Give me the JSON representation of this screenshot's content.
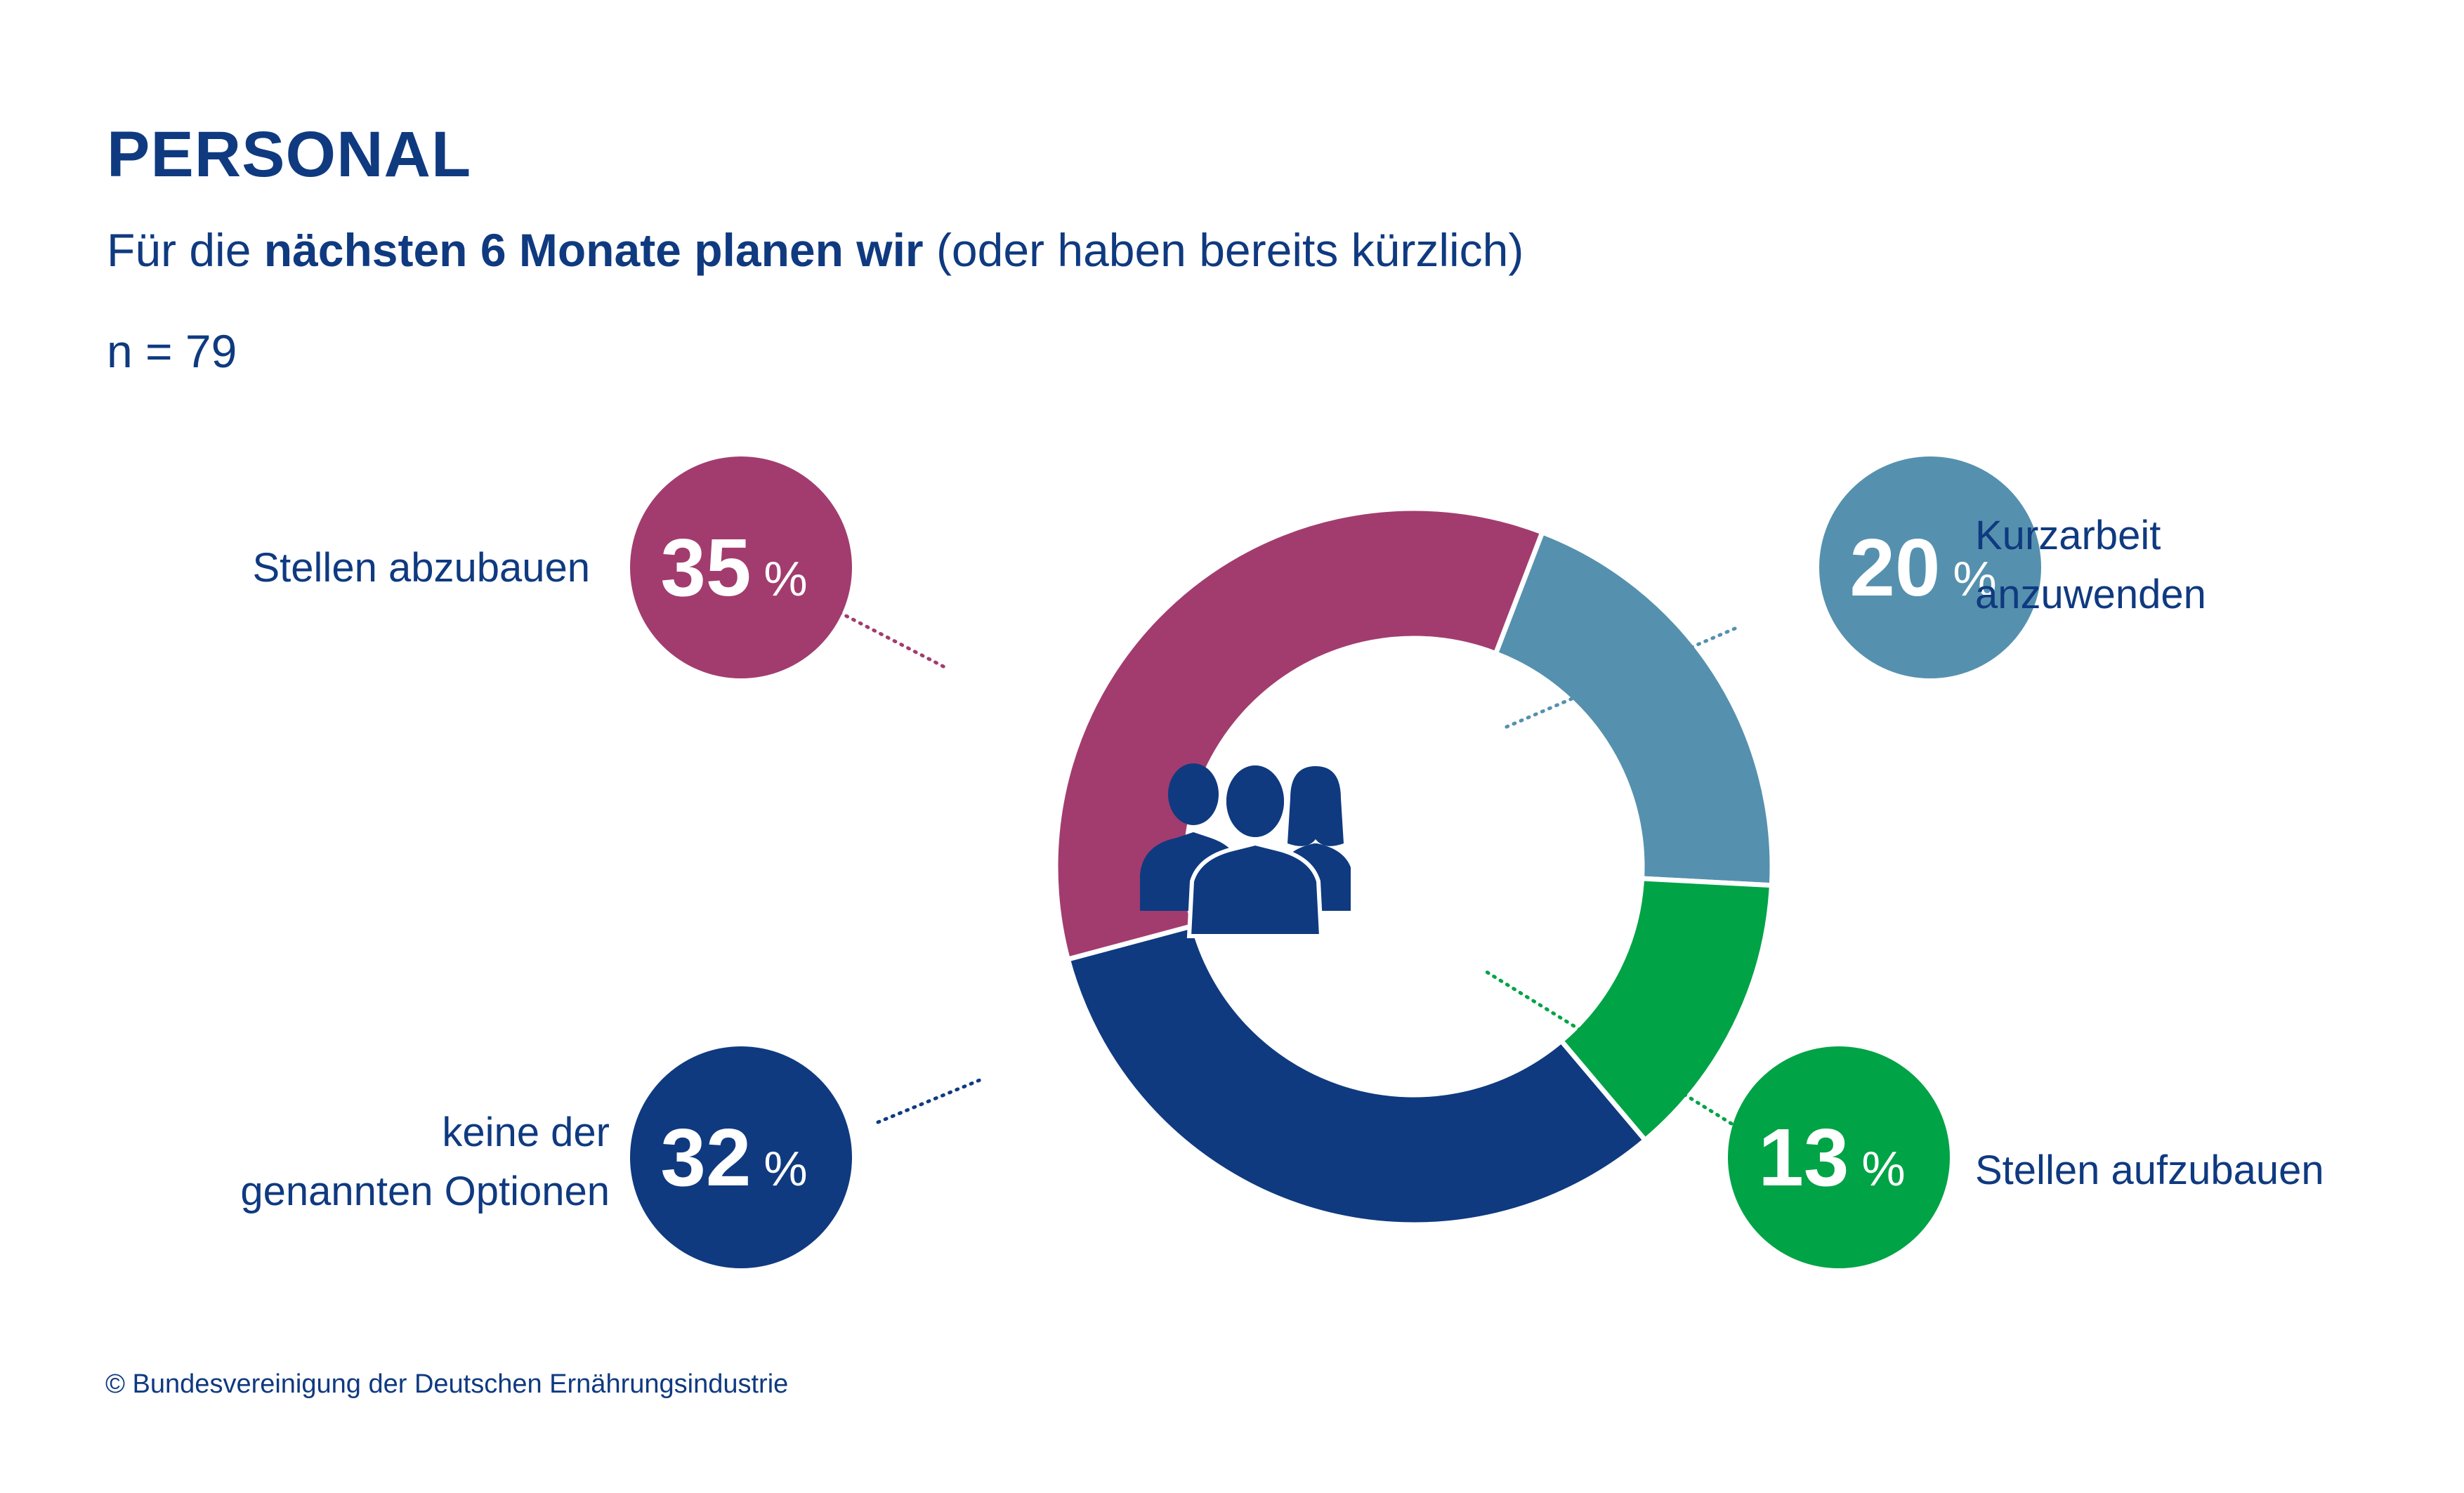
{
  "header": {
    "title": "PERSONAL",
    "subtitle_prefix": "Für die ",
    "subtitle_bold": "nächsten 6 Monate planen wir",
    "subtitle_suffix": " (oder haben bereits kürzlich)",
    "sample": "n = 79"
  },
  "footer": "© Bundesvereinigung der Deutschen Ernährungsindustrie",
  "center_icon": "people-group-icon",
  "chart_data": {
    "type": "pie",
    "variant": "donut",
    "unit": "%",
    "slices": [
      {
        "label": "Stellen abzubauen",
        "value": 35,
        "color": "#a23c6e",
        "label_lines": [
          "Stellen abzubauen"
        ]
      },
      {
        "label": "Kurzarbeit anzuwenden",
        "value": 20,
        "color": "#5591ae",
        "label_lines": [
          "Kurzarbeit",
          "anzuwenden"
        ]
      },
      {
        "label": "Stellen aufzubauen",
        "value": 13,
        "color": "#00a346",
        "label_lines": [
          "Stellen aufzubauen"
        ]
      },
      {
        "label": "keine der genannten Optionen",
        "value": 32,
        "color": "#0f3a80",
        "label_lines": [
          "keine der",
          "genannten Optionen"
        ]
      }
    ]
  }
}
